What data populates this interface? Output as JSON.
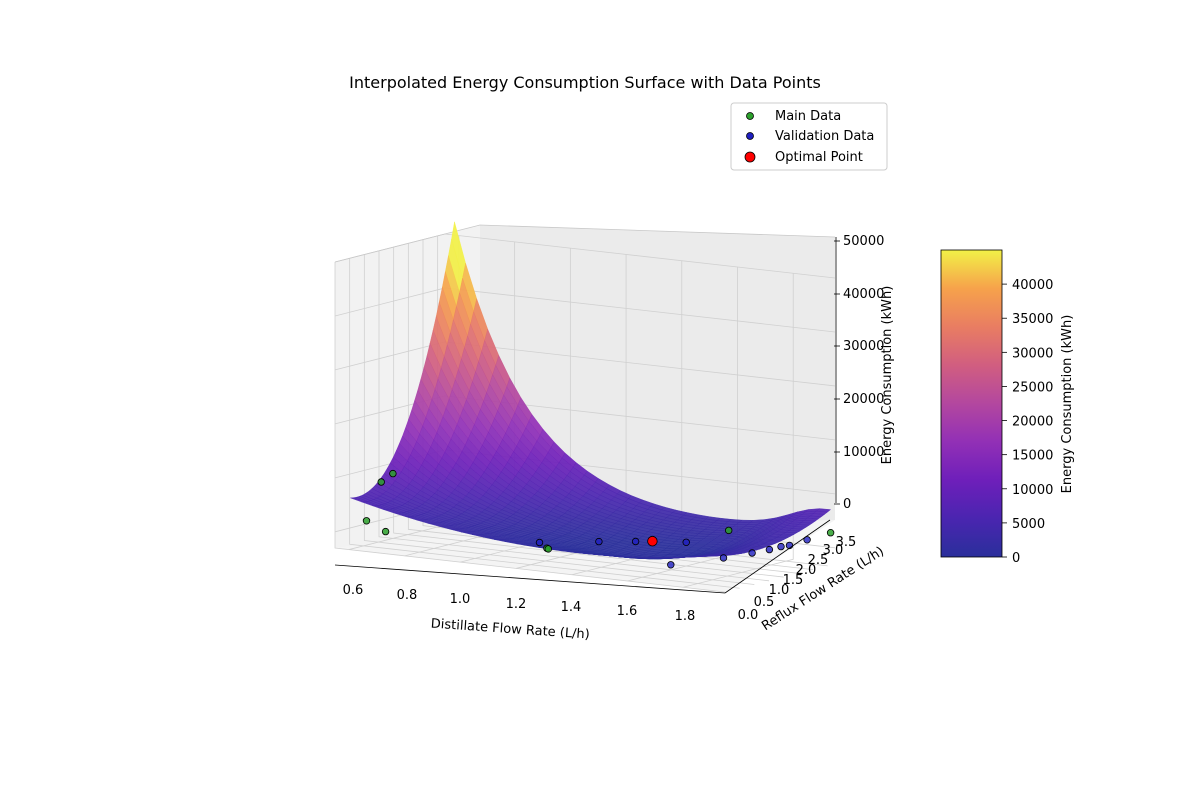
{
  "chart_data": {
    "type": "surface3d",
    "title": "Interpolated Energy Consumption Surface with Data Points",
    "xlabel": "Distillate Flow Rate (L/h)",
    "ylabel": "Reflux Flow Rate (L/h)",
    "zlabel": "Energy Consumption (kWh)",
    "xlim": [
      0.55,
      1.95
    ],
    "ylim": [
      0.0,
      3.75
    ],
    "zlim": [
      -3000,
      50000
    ],
    "x_ticks": [
      "0.6",
      "0.8",
      "1.0",
      "1.2",
      "1.4",
      "1.6",
      "1.8"
    ],
    "y_ticks": [
      "0.0",
      "0.5",
      "1.0",
      "1.5",
      "2.0",
      "2.5",
      "3.0",
      "3.5"
    ],
    "z_ticks": [
      "0",
      "10000",
      "20000",
      "30000",
      "40000",
      "50000"
    ],
    "colorbar": {
      "label": "Energy Consumption (kWh)",
      "range": [
        0,
        45000
      ],
      "ticks": [
        "0",
        "5000",
        "10000",
        "15000",
        "20000",
        "25000",
        "30000",
        "35000",
        "40000"
      ],
      "colormap": "plasma"
    },
    "legend": {
      "position": "top-right",
      "entries": [
        {
          "label": "Main Data",
          "color": "#2ca02c"
        },
        {
          "label": "Validation Data",
          "color": "#1f1fbf"
        },
        {
          "label": "Optimal Point",
          "color": "#ff0000"
        }
      ]
    },
    "grid": true,
    "main_data": [
      {
        "x": 0.6,
        "y": 0.6,
        "z": 1500
      },
      {
        "x": 0.6,
        "y": 1.1,
        "z": 8000
      },
      {
        "x": 0.6,
        "y": 1.5,
        "z": 9000
      },
      {
        "x": 0.7,
        "y": 0.3,
        "z": 500
      },
      {
        "x": 1.3,
        "y": 0.1,
        "z": 1200
      },
      {
        "x": 1.3,
        "y": 0.15,
        "z": 1000
      },
      {
        "x": 1.5,
        "y": 1.8,
        "z": 1600
      },
      {
        "x": 1.7,
        "y": 2.5,
        "z": 3500
      },
      {
        "x": 1.95,
        "y": 3.6,
        "z": 3000
      }
    ],
    "validation_data": [
      {
        "x": 1.2,
        "y": 0.8,
        "z": 700
      },
      {
        "x": 1.35,
        "y": 1.4,
        "z": 900
      },
      {
        "x": 1.45,
        "y": 1.7,
        "z": 1100
      },
      {
        "x": 1.6,
        "y": 2.0,
        "z": 1400
      },
      {
        "x": 1.75,
        "y": 0.05,
        "z": 800
      },
      {
        "x": 1.85,
        "y": 0.9,
        "z": 1500
      },
      {
        "x": 1.9,
        "y": 1.4,
        "z": 2000
      },
      {
        "x": 1.92,
        "y": 1.8,
        "z": 2200
      },
      {
        "x": 1.93,
        "y": 2.1,
        "z": 2400
      },
      {
        "x": 1.95,
        "y": 2.2,
        "z": 2600
      },
      {
        "x": 1.95,
        "y": 2.8,
        "z": 2800
      }
    ],
    "optimal_point": {
      "x": 1.5,
      "y": 1.8,
      "z": 1300
    }
  }
}
